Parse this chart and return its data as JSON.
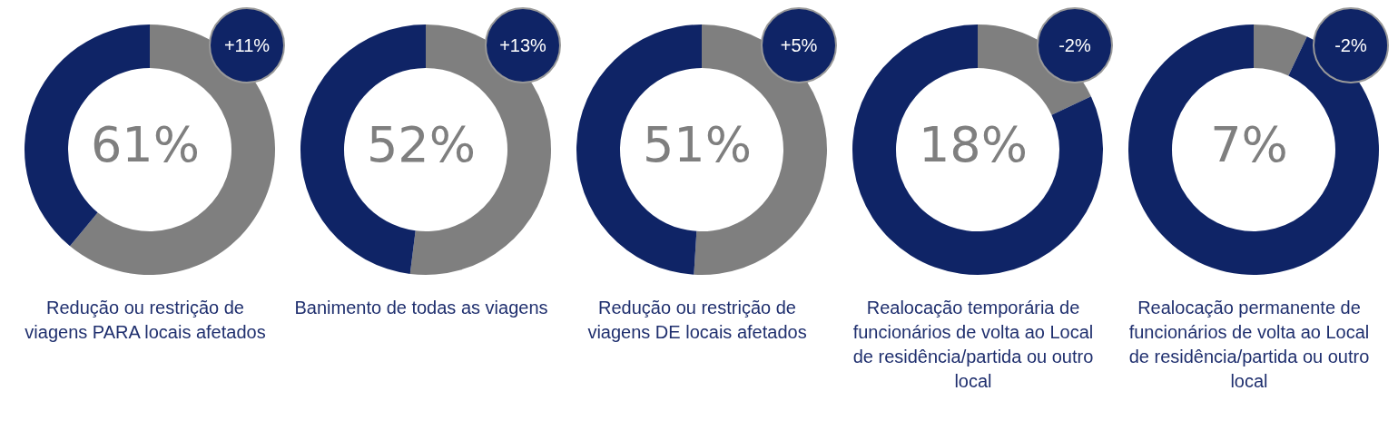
{
  "chart_data": [
    {
      "type": "donut",
      "title": "Redução ou restrição de viagens PARA locais afetados",
      "categories": [
        null,
        null
      ],
      "values": [
        61,
        39
      ],
      "colors": [
        "#7f7f7f",
        "#0f2466"
      ],
      "annotations": [
        "61%",
        "+11%"
      ]
    },
    {
      "type": "donut",
      "title": "Banimento de todas as viagens",
      "categories": [
        null,
        null
      ],
      "values": [
        52,
        48
      ],
      "colors": [
        "#7f7f7f",
        "#0f2466"
      ],
      "annotations": [
        "52%",
        "+13%"
      ]
    },
    {
      "type": "donut",
      "title": "Redução ou restrição de viagens DE locais afetados",
      "categories": [
        null,
        null
      ],
      "values": [
        51,
        49
      ],
      "colors": [
        "#7f7f7f",
        "#0f2466"
      ],
      "annotations": [
        "51%",
        "+5%"
      ]
    },
    {
      "type": "donut",
      "title": "Realocação temporária de funcionários de volta ao Local de residência/partida ou outro local",
      "categories": [
        null,
        null
      ],
      "values": [
        18,
        82
      ],
      "colors": [
        "#7f7f7f",
        "#0f2466"
      ],
      "annotations": [
        "18%",
        "-2%"
      ]
    },
    {
      "type": "donut",
      "title": "Realocação permanente de funcionários de volta ao Local de residência/partida ou outro local",
      "categories": [
        null,
        null
      ],
      "values": [
        7,
        93
      ],
      "colors": [
        "#7f7f7f",
        "#0f2466"
      ],
      "annotations": [
        "7%",
        "-2%"
      ]
    }
  ]
}
